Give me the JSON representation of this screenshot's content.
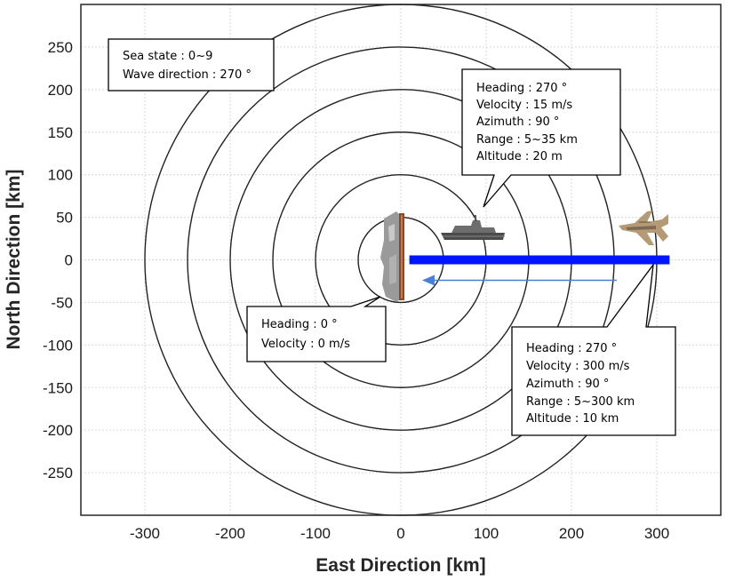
{
  "chart_data": {
    "type": "scatter",
    "title": "",
    "xlabel": "East Direction [km]",
    "ylabel": "North Direction [km]",
    "xlim": [
      -375,
      375
    ],
    "ylim": [
      -300,
      300
    ],
    "xticks": [
      -300,
      -200,
      -100,
      0,
      100,
      200,
      300
    ],
    "yticks": [
      250,
      200,
      150,
      100,
      50,
      0,
      -50,
      -100,
      -150,
      -200,
      -250
    ],
    "grid": true,
    "range_rings_km": [
      50,
      100,
      150,
      200,
      250,
      300
    ],
    "series": [
      {
        "values": [
          [
            10,
            0
          ],
          [
            315,
            0
          ]
        ]
      },
      {
        "values": [
          [
            253,
            -24
          ],
          [
            25,
            -24
          ]
        ]
      }
    ],
    "annotations": [
      {
        "name": "sea-callout",
        "lines": [
          "Sea state : 0~9",
          "Wave direction : 270 °"
        ]
      },
      {
        "name": "ownship-callout",
        "lines": [
          "Heading : 0 °",
          "Velocity  : 0 m/s"
        ]
      },
      {
        "name": "ship-callout",
        "lines": [
          "Heading : 270  °",
          "Velocity  : 15 m/s",
          "Azimuth  : 90 °",
          "Range : 5~35  km",
          "Altitude  : 20 m"
        ]
      },
      {
        "name": "aircraft-callout",
        "lines": [
          "Heading : 270  °",
          "Velocity  : 300 m/s",
          "Azimuth  : 90 °",
          "Range : 5~300  km",
          "Altitude   : 10 km"
        ]
      }
    ],
    "colors": {
      "ring": "#222222",
      "grid": "#d9d9d9",
      "track_bar": "#0015ff",
      "motion_arrow": "#4a7fd6"
    }
  }
}
